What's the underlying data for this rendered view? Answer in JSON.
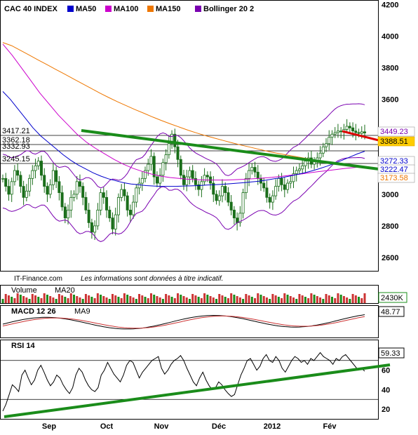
{
  "chart_data": {
    "type": "line",
    "title": "CAC 40 INDEX",
    "legend": [
      {
        "name": "MA50",
        "color": "#0000cc"
      },
      {
        "name": "MA100",
        "color": "#cc00cc"
      },
      {
        "name": "MA150",
        "color": "#ee7700"
      },
      {
        "name": "Bollinger 20 2",
        "color": "#7a00b0"
      }
    ],
    "x_labels": [
      "Sep",
      "Oct",
      "Nov",
      "Déc",
      "2012",
      "Fév"
    ],
    "price_axis": {
      "ticks": [
        2600,
        2800,
        3000,
        3200,
        3400,
        3600,
        3800,
        4000,
        4200
      ],
      "ylim": [
        2520,
        4220
      ]
    },
    "price_labels_left": [
      "3417.21",
      "3362.18",
      "3332.93",
      "3245.15"
    ],
    "price_labels_right": [
      {
        "value": "3449.23",
        "color": "#7a00b0",
        "bg": "#ffffff"
      },
      {
        "value": "3388.51",
        "color": "#000000",
        "bg": "#ffcc00"
      },
      {
        "value": "3272.33",
        "color": "#0000cc",
        "bg": "#ffffff"
      },
      {
        "value": "3222.47",
        "color": "#0000cc",
        "bg": "#ffffff"
      },
      {
        "value": "3173.58",
        "color": "#ee7700",
        "bg": "#ffffff"
      }
    ],
    "price_close": [
      3100,
      3050,
      3000,
      3080,
      3150,
      3120,
      3050,
      2980,
      3020,
      3100,
      3150,
      3180,
      3210,
      3120,
      3050,
      3000,
      3060,
      3150,
      3080,
      3010,
      2920,
      2850,
      2900,
      2980,
      3000,
      3080,
      3050,
      2980,
      2900,
      2820,
      2760,
      2800,
      2900,
      3010,
      2980,
      2900,
      2850,
      2780,
      2870,
      2980,
      3030,
      2990,
      2900,
      2870,
      2950,
      3040,
      3070,
      3100,
      3150,
      3190,
      3240,
      3110,
      3070,
      3120,
      3200,
      3250,
      3320,
      3380,
      3300,
      3220,
      3120,
      3060,
      3110,
      3150,
      3100,
      3060,
      3030,
      3080,
      3120,
      3110,
      3070,
      3000,
      2960,
      2990,
      3050,
      3010,
      2950,
      2900,
      2850,
      2820,
      2880,
      3010,
      3100,
      3150,
      3170,
      3140,
      3100,
      3070,
      3040,
      2980,
      2950,
      2990,
      3050,
      3100,
      3060,
      3030,
      3070,
      3080,
      3130,
      3150,
      3160,
      3180,
      3210,
      3230,
      3190,
      3210,
      3230,
      3260,
      3300,
      3320,
      3360,
      3380,
      3390,
      3400,
      3395,
      3410,
      3430,
      3420,
      3400,
      3390,
      3385,
      3395,
      3388
    ],
    "ma50": [
      3650,
      3600,
      3540,
      3480,
      3420,
      3370,
      3330,
      3290,
      3250,
      3215,
      3185,
      3160,
      3135,
      3115,
      3098,
      3085,
      3073,
      3065,
      3060,
      3055,
      3052,
      3050,
      3050,
      3050,
      3052,
      3053,
      3055,
      3058,
      3060,
      3063,
      3066,
      3070,
      3073,
      3078,
      3083,
      3090,
      3098,
      3105,
      3115,
      3125,
      3135,
      3148,
      3162,
      3178,
      3195,
      3215,
      3235,
      3255,
      3272
    ],
    "ma100": [
      3950,
      3880,
      3800,
      3720,
      3640,
      3570,
      3500,
      3440,
      3380,
      3330,
      3290,
      3255,
      3220,
      3190,
      3165,
      3145,
      3128,
      3115,
      3106,
      3100,
      3095,
      3092,
      3090,
      3090,
      3090,
      3092,
      3095,
      3098,
      3102,
      3107,
      3113,
      3120,
      3127,
      3135,
      3143,
      3150,
      3157,
      3164,
      3170,
      3176
    ],
    "ma150": [
      3960,
      3940,
      3910,
      3880,
      3850,
      3820,
      3790,
      3760,
      3730,
      3700,
      3670,
      3640,
      3612,
      3585,
      3560,
      3535,
      3512,
      3488,
      3466,
      3445,
      3425,
      3405,
      3387,
      3370,
      3355,
      3340,
      3325,
      3311,
      3298,
      3285,
      3272,
      3260,
      3250,
      3240,
      3230,
      3220,
      3210,
      3200,
      3192,
      3184,
      3176,
      3170
    ],
    "trend_support": {
      "from": [
        116,
        186
      ],
      "to": [
        548,
        242
      ],
      "color": "#1a8c1a"
    },
    "trend_resist": {
      "from": [
        488,
        187
      ],
      "to": [
        540,
        200
      ],
      "color": "#dd0000"
    },
    "source": "IT-Finance.com",
    "disclaimer": "Les informations sont données à titre indicatif.",
    "volume": {
      "title": "Volume",
      "ma_label": "MA20",
      "value": "2430K"
    },
    "macd": {
      "title": "MACD 12 26",
      "signal_label": "MA9",
      "value": "48.77"
    },
    "rsi": {
      "title": "RSI 14",
      "value": "59.33",
      "ticks": [
        20,
        40,
        60
      ],
      "levels": [
        30,
        70
      ],
      "values": [
        18,
        25,
        35,
        45,
        42,
        38,
        55,
        60,
        52,
        45,
        50,
        60,
        65,
        58,
        50,
        44,
        48,
        55,
        52,
        45,
        40,
        36,
        42,
        55,
        62,
        58,
        50,
        44,
        40,
        38,
        42,
        55,
        60,
        68,
        62,
        56,
        52,
        48,
        55,
        65,
        70,
        68,
        60,
        52,
        58,
        62,
        66,
        70,
        72,
        74,
        62,
        56,
        60,
        66,
        70,
        72,
        75,
        70,
        62,
        55,
        48,
        44,
        52,
        58,
        50,
        44,
        40,
        42,
        48,
        45,
        40,
        36,
        33,
        35,
        45,
        55,
        62,
        70,
        72,
        66,
        60,
        64,
        72,
        76,
        70,
        68,
        74,
        70,
        62,
        58,
        64,
        70,
        74,
        72,
        68,
        70,
        66,
        72,
        70,
        74,
        78,
        74,
        72,
        70,
        66,
        72,
        70,
        74,
        76,
        72,
        68,
        64,
        60,
        62,
        59
      ]
    },
    "rsi_trend": {
      "from": [
        6,
        594
      ],
      "to": [
        556,
        520
      ],
      "color": "#1a8c1a"
    }
  }
}
